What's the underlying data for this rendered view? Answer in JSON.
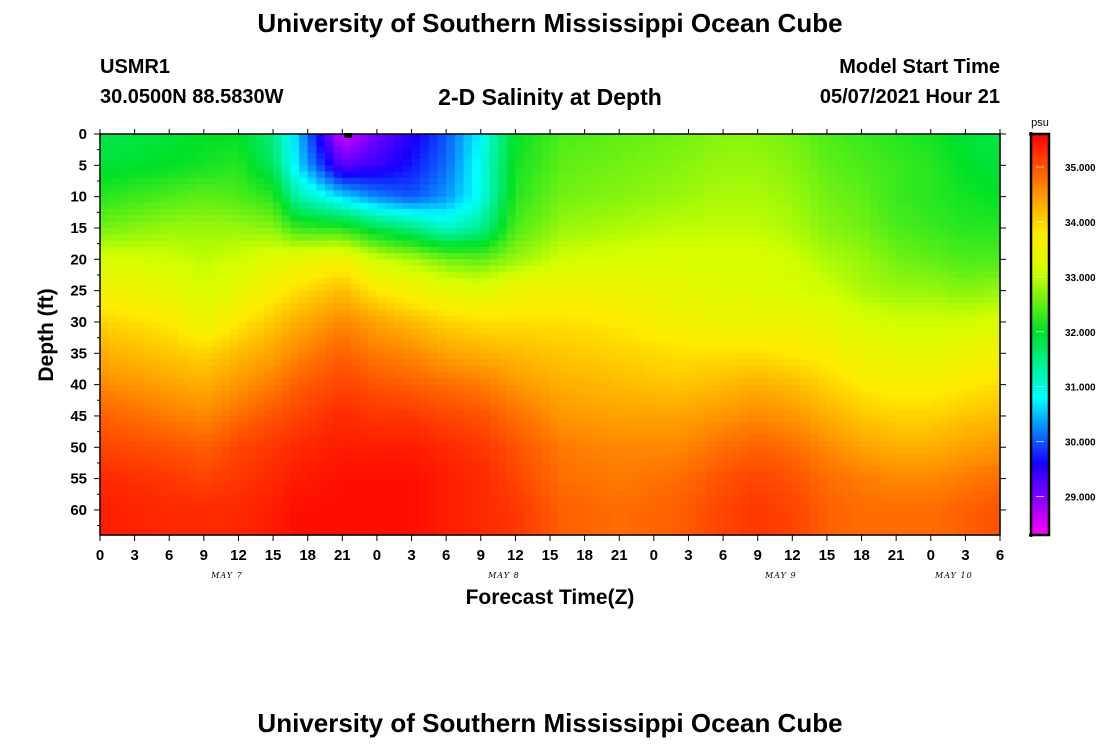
{
  "header": {
    "title": "University of Southern Mississippi Ocean Cube",
    "station_id": "USMR1",
    "coordinates": "30.0500N  88.5830W",
    "subtitle": "2-D Salinity at Depth",
    "start_label": "Model Start Time",
    "start_time": "05/07/2021 Hour 21"
  },
  "footer": {
    "title": "University of Southern Mississippi Ocean Cube"
  },
  "chart_data": {
    "type": "heatmap",
    "title": "2-D Salinity at Depth",
    "xlabel": "Forecast Time(Z)",
    "ylabel": "Depth (ft)",
    "x_ticks": [
      "0",
      "3",
      "6",
      "9",
      "12",
      "15",
      "18",
      "21",
      "0",
      "3",
      "6",
      "9",
      "12",
      "15",
      "18",
      "21",
      "0",
      "3",
      "6",
      "9",
      "12",
      "15",
      "18",
      "21",
      "0",
      "3",
      "6"
    ],
    "x_hours_range": [
      0,
      78
    ],
    "date_labels": [
      {
        "label": "MAY 7",
        "hour": 11
      },
      {
        "label": "MAY 8",
        "hour": 35
      },
      {
        "label": "MAY 9",
        "hour": 59
      },
      {
        "label": "MAY 10",
        "hour": 74
      }
    ],
    "y_ticks": [
      0,
      5,
      10,
      15,
      20,
      25,
      30,
      35,
      40,
      45,
      50,
      55,
      60
    ],
    "y_range": [
      0,
      64
    ],
    "marker_hour": 21.5,
    "colorbar": {
      "unit": "psu",
      "labels": [
        "35.000",
        "34.000",
        "33.000",
        "32.000",
        "31.000",
        "30.000",
        "29.000"
      ],
      "label_values": [
        35,
        34,
        33,
        32,
        31,
        30,
        29
      ],
      "range": [
        28.3,
        35.6
      ]
    },
    "profile_hours": [
      0,
      6,
      9,
      12,
      15,
      17,
      21,
      24,
      27,
      30,
      33,
      36,
      40,
      45,
      50,
      54,
      57,
      60,
      63,
      66,
      69,
      72,
      75,
      78
    ],
    "profile_depths": [
      0,
      5,
      10,
      15,
      20,
      25,
      30,
      35,
      40,
      45,
      50,
      55,
      60,
      64
    ],
    "salinity": [
      [
        31.8,
        31.9,
        32.2,
        32.6,
        33.2,
        33.6,
        34.0,
        34.3,
        34.6,
        34.9,
        35.1,
        35.3,
        35.4,
        35.4
      ],
      [
        31.9,
        32.0,
        32.4,
        32.8,
        33.1,
        33.4,
        33.8,
        34.1,
        34.4,
        34.7,
        35.0,
        35.2,
        35.3,
        35.3
      ],
      [
        32.0,
        32.1,
        32.5,
        32.8,
        33.0,
        33.2,
        33.5,
        34.0,
        34.3,
        34.6,
        34.9,
        35.1,
        35.3,
        35.3
      ],
      [
        32.0,
        32.2,
        32.4,
        32.8,
        33.1,
        33.4,
        33.8,
        34.2,
        34.5,
        34.8,
        35.1,
        35.2,
        35.3,
        35.3
      ],
      [
        31.5,
        31.7,
        32.2,
        32.7,
        33.3,
        33.7,
        34.1,
        34.4,
        34.7,
        35.0,
        35.2,
        35.3,
        35.4,
        35.4
      ],
      [
        30.6,
        30.7,
        31.3,
        32.3,
        33.4,
        33.9,
        34.3,
        34.6,
        34.9,
        35.1,
        35.3,
        35.4,
        35.5,
        35.5
      ],
      [
        28.5,
        29.2,
        30.6,
        32.2,
        33.6,
        34.2,
        34.6,
        34.9,
        35.1,
        35.3,
        35.4,
        35.5,
        35.5,
        35.5
      ],
      [
        29.1,
        29.4,
        30.2,
        31.8,
        33.1,
        33.8,
        34.4,
        34.7,
        35.0,
        35.2,
        35.4,
        35.5,
        35.5,
        35.5
      ],
      [
        29.5,
        29.7,
        30.0,
        31.5,
        32.9,
        33.6,
        34.2,
        34.6,
        34.9,
        35.2,
        35.4,
        35.5,
        35.5,
        35.5
      ],
      [
        30.0,
        30.1,
        30.3,
        31.1,
        32.6,
        33.4,
        34.0,
        34.4,
        34.8,
        35.1,
        35.3,
        35.4,
        35.4,
        35.4
      ],
      [
        30.8,
        30.9,
        30.9,
        31.4,
        32.5,
        33.3,
        33.9,
        34.3,
        34.7,
        35.0,
        35.2,
        35.3,
        35.3,
        35.3
      ],
      [
        32.0,
        32.1,
        32.2,
        32.4,
        32.8,
        33.5,
        33.9,
        34.2,
        34.5,
        34.8,
        35.0,
        35.1,
        35.2,
        35.2
      ],
      [
        32.4,
        32.5,
        32.6,
        32.8,
        33.1,
        33.6,
        33.9,
        34.1,
        34.3,
        34.5,
        34.7,
        34.8,
        34.9,
        34.9
      ],
      [
        32.5,
        32.6,
        32.7,
        32.9,
        33.2,
        33.5,
        33.8,
        34.0,
        34.2,
        34.4,
        34.6,
        34.7,
        34.8,
        34.8
      ],
      [
        32.6,
        32.7,
        32.8,
        33.0,
        33.2,
        33.4,
        33.6,
        33.9,
        34.1,
        34.4,
        34.6,
        34.8,
        34.9,
        34.9
      ],
      [
        32.7,
        32.8,
        32.9,
        33.0,
        33.2,
        33.3,
        33.5,
        33.9,
        34.2,
        34.5,
        34.8,
        35.0,
        35.1,
        35.1
      ],
      [
        32.7,
        32.8,
        32.9,
        33.0,
        33.2,
        33.3,
        33.5,
        33.9,
        34.3,
        34.6,
        34.9,
        35.1,
        35.2,
        35.2
      ],
      [
        32.6,
        32.7,
        32.8,
        32.9,
        33.1,
        33.2,
        33.5,
        33.8,
        34.2,
        34.5,
        34.8,
        35.0,
        35.1,
        35.1
      ],
      [
        32.4,
        32.5,
        32.6,
        32.7,
        32.9,
        33.1,
        33.4,
        33.7,
        34.0,
        34.3,
        34.6,
        34.8,
        34.9,
        34.9
      ],
      [
        32.3,
        32.4,
        32.5,
        32.6,
        32.8,
        32.9,
        33.2,
        33.5,
        33.8,
        34.1,
        34.4,
        34.7,
        34.8,
        34.8
      ],
      [
        32.2,
        32.3,
        32.3,
        32.4,
        32.6,
        32.8,
        33.1,
        33.4,
        33.7,
        34.0,
        34.3,
        34.6,
        34.8,
        34.8
      ],
      [
        32.1,
        32.2,
        32.2,
        32.3,
        32.5,
        32.8,
        33.1,
        33.4,
        33.7,
        34.0,
        34.3,
        34.6,
        34.8,
        34.8
      ],
      [
        31.9,
        32.0,
        32.1,
        32.2,
        32.4,
        32.7,
        33.1,
        33.5,
        33.8,
        34.1,
        34.4,
        34.7,
        34.9,
        34.9
      ],
      [
        31.8,
        31.9,
        32.0,
        32.2,
        32.4,
        32.8,
        33.2,
        33.6,
        33.9,
        34.2,
        34.5,
        34.8,
        35.0,
        35.0
      ]
    ]
  },
  "colors": {
    "text": "#000000",
    "background": "#ffffff",
    "marker": "#000000"
  }
}
